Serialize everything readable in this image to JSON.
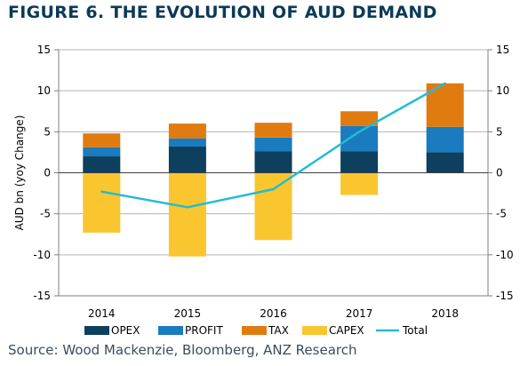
{
  "figure_title": "FIGURE 6. THE EVOLUTION OF AUD DEMAND",
  "source": "Source: Wood Mackenzie, Bloomberg, ANZ Research",
  "colors": {
    "OPEX": "#0d3f5e",
    "PROFIT": "#1a7bbf",
    "TAX": "#e07b10",
    "CAPEX": "#f9c630",
    "Total": "#23bcd2",
    "grid": "#b5b5b5",
    "axis": "#7f7f7f"
  },
  "chart_data": {
    "type": "bar",
    "stacked": true,
    "title": "FIGURE 6. THE EVOLUTION OF AUD DEMAND",
    "ylabel": "AUD bn (yoy Change)",
    "xlabel": "",
    "categories": [
      "2014",
      "2015",
      "2016",
      "2017",
      "2018"
    ],
    "ylim": [
      -15,
      15
    ],
    "yticks": [
      -15,
      -10,
      -5,
      0,
      5,
      10,
      15
    ],
    "secondary_yaxis": true,
    "grid": "horizontal",
    "legend_position": "bottom",
    "series": [
      {
        "name": "OPEX",
        "type": "bar",
        "values": [
          2.0,
          3.2,
          2.6,
          2.6,
          2.5
        ]
      },
      {
        "name": "PROFIT",
        "type": "bar",
        "values": [
          1.1,
          1.0,
          1.7,
          3.1,
          3.1
        ]
      },
      {
        "name": "TAX",
        "type": "bar",
        "values": [
          1.7,
          1.8,
          1.8,
          1.8,
          5.3
        ]
      },
      {
        "name": "CAPEX",
        "type": "bar",
        "values": [
          -7.3,
          -10.2,
          -8.2,
          -2.7,
          0
        ]
      },
      {
        "name": "Total",
        "type": "line",
        "values": [
          -2.3,
          -4.2,
          -2.0,
          5.0,
          10.9
        ]
      }
    ]
  }
}
